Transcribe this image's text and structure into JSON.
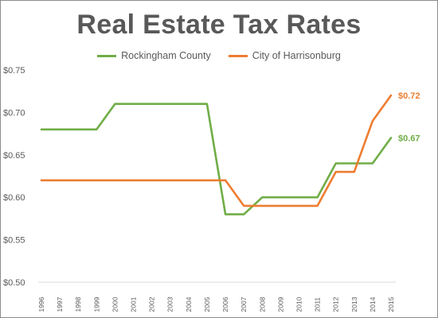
{
  "chart_data": {
    "type": "line",
    "title": "Real Estate Tax Rates",
    "xlabel": "",
    "ylabel": "",
    "x": [
      "1996",
      "1997",
      "1998",
      "1999",
      "2000",
      "2001",
      "2002",
      "2003",
      "2004",
      "2005",
      "2006",
      "2007",
      "2008",
      "2009",
      "2010",
      "2011",
      "2012",
      "2013",
      "2014",
      "2015"
    ],
    "ylim": [
      0.5,
      0.75
    ],
    "yticks": [
      0.5,
      0.55,
      0.6,
      0.65,
      0.7,
      0.75
    ],
    "ytick_labels": [
      "$0.50",
      "$0.55",
      "$0.60",
      "$0.65",
      "$0.70",
      "$0.75"
    ],
    "grid": false,
    "legend_position": "top-center",
    "series": [
      {
        "name": "Rockingham County",
        "color": "#70ad47",
        "values": [
          0.68,
          0.68,
          0.68,
          0.68,
          0.71,
          0.71,
          0.71,
          0.71,
          0.71,
          0.71,
          0.58,
          0.58,
          0.6,
          0.6,
          0.6,
          0.6,
          0.64,
          0.64,
          0.64,
          0.67
        ],
        "end_label": "$0.67"
      },
      {
        "name": "City of Harrisonburg",
        "color": "#ed7d31",
        "values": [
          0.62,
          0.62,
          0.62,
          0.62,
          0.62,
          0.62,
          0.62,
          0.62,
          0.62,
          0.62,
          0.62,
          0.59,
          0.59,
          0.59,
          0.59,
          0.59,
          0.63,
          0.63,
          0.69,
          0.72
        ],
        "end_label": "$0.72"
      }
    ]
  }
}
